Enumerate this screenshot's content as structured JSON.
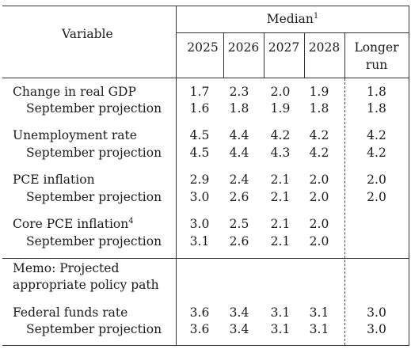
{
  "header": {
    "variable_label": "Variable",
    "median_label": "Median",
    "median_footnote": "1",
    "years": [
      "2025",
      "2026",
      "2027",
      "2028"
    ],
    "longer_run_line1": "Longer",
    "longer_run_line2": "run"
  },
  "rows": [
    {
      "label": "Change in real GDP",
      "values": [
        "1.7",
        "2.3",
        "2.0",
        "1.9"
      ],
      "longer": "1.8"
    },
    {
      "label": "September projection",
      "values": [
        "1.6",
        "1.8",
        "1.9",
        "1.8"
      ],
      "longer": "1.8"
    },
    {
      "label": "Unemployment rate",
      "values": [
        "4.5",
        "4.4",
        "4.2",
        "4.2"
      ],
      "longer": "4.2"
    },
    {
      "label": "September projection",
      "values": [
        "4.5",
        "4.4",
        "4.3",
        "4.2"
      ],
      "longer": "4.2"
    },
    {
      "label": "PCE inflation",
      "values": [
        "2.9",
        "2.4",
        "2.1",
        "2.0"
      ],
      "longer": "2.0"
    },
    {
      "label": "September projection",
      "values": [
        "3.0",
        "2.6",
        "2.1",
        "2.0"
      ],
      "longer": "2.0"
    },
    {
      "label": "Core PCE inflation",
      "footnote": "4",
      "values": [
        "3.0",
        "2.5",
        "2.1",
        "2.0"
      ],
      "longer": ""
    },
    {
      "label": "September projection",
      "values": [
        "3.1",
        "2.6",
        "2.1",
        "2.0"
      ],
      "longer": ""
    }
  ],
  "memo": {
    "line1": "Memo: Projected",
    "line2": "appropriate policy path"
  },
  "policy_rows": [
    {
      "label": "Federal funds rate",
      "values": [
        "3.6",
        "3.4",
        "3.1",
        "3.1"
      ],
      "longer": "3.0"
    },
    {
      "label": "September projection",
      "values": [
        "3.6",
        "3.4",
        "3.1",
        "3.1"
      ],
      "longer": "3.0"
    }
  ]
}
